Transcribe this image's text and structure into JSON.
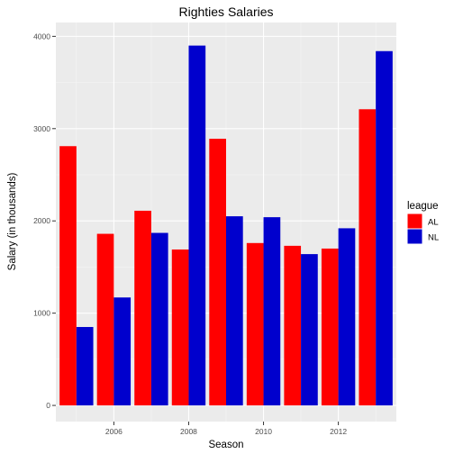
{
  "chart_data": {
    "type": "bar",
    "title": "Righties Salaries",
    "xlabel": "Season",
    "ylabel": "Salary (in thousands)",
    "x": [
      2005,
      2006,
      2007,
      2008,
      2009,
      2010,
      2011,
      2012,
      2013
    ],
    "x_tick_labels": [
      "2006",
      "2008",
      "2010",
      "2012"
    ],
    "x_ticks": [
      2006,
      2008,
      2010,
      2012
    ],
    "xlim": [
      2004.45,
      2013.55
    ],
    "y_ticks": [
      0,
      1000,
      2000,
      3000,
      4000
    ],
    "y_tick_labels": [
      "0",
      "1000",
      "2000",
      "3000",
      "4000"
    ],
    "ylim": [
      -175,
      4150
    ],
    "grid": true,
    "legend": {
      "title": "league",
      "position": "right"
    },
    "series": [
      {
        "name": "AL",
        "color": "#ff0000",
        "values": [
          2810,
          1860,
          2110,
          1690,
          2890,
          1760,
          1730,
          1700,
          3210
        ]
      },
      {
        "name": "NL",
        "color": "#0000cd",
        "values": [
          850,
          1170,
          1870,
          3900,
          2050,
          2040,
          1640,
          1920,
          3840
        ]
      }
    ]
  }
}
